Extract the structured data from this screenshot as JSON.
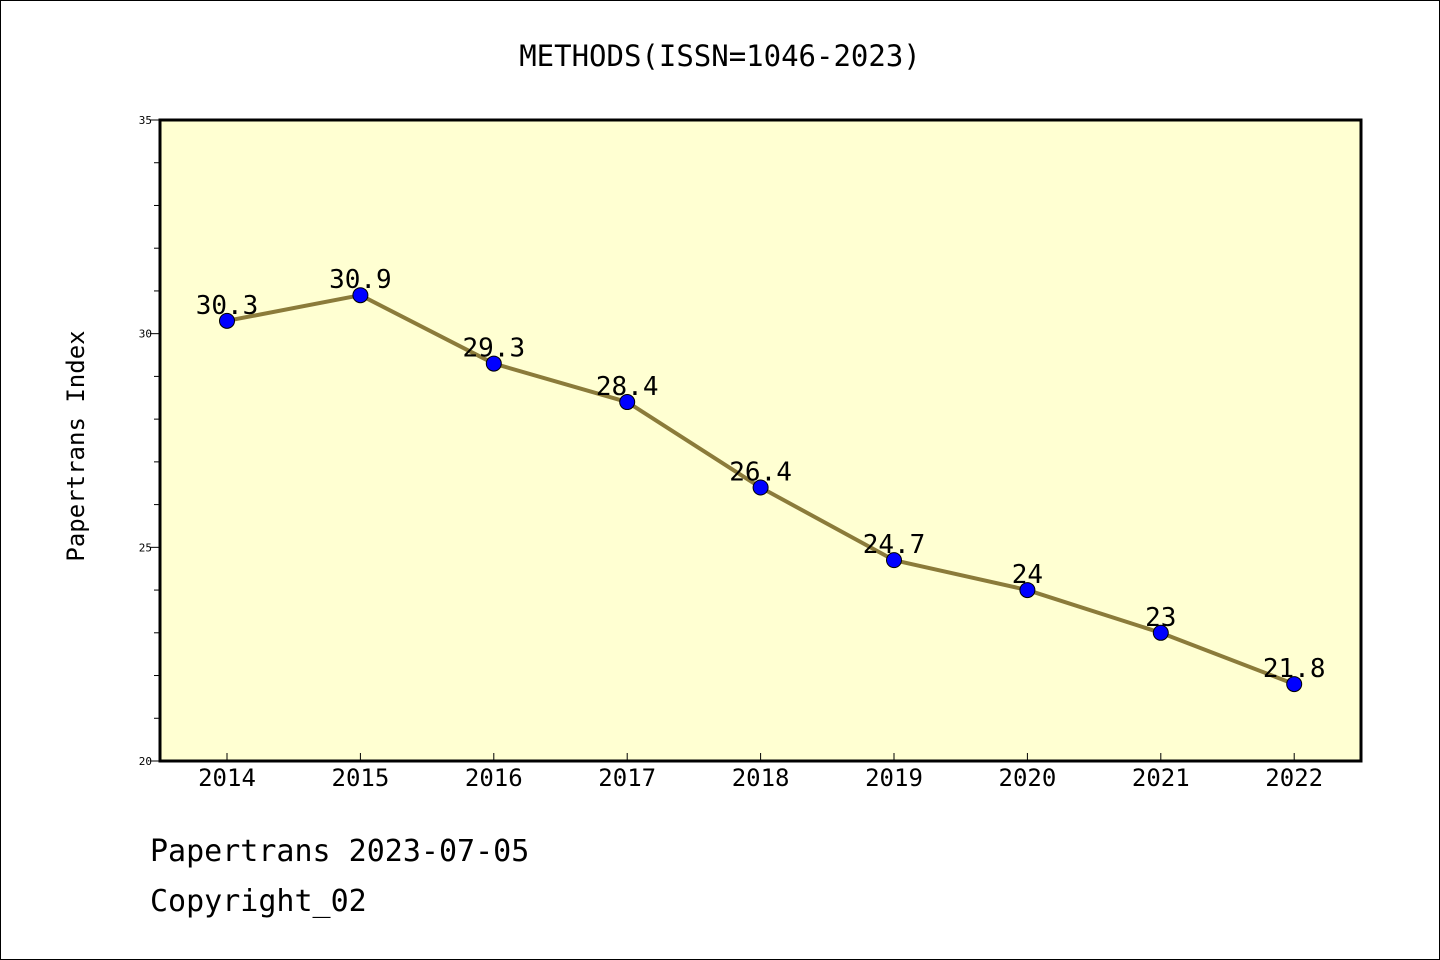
{
  "chart_data": {
    "type": "line",
    "title": "METHODS(ISSN=1046-2023)",
    "xlabel": "",
    "ylabel": "Papertrans Index",
    "categories": [
      "2014",
      "2015",
      "2016",
      "2017",
      "2018",
      "2019",
      "2020",
      "2021",
      "2022"
    ],
    "values": [
      30.3,
      30.9,
      29.3,
      28.4,
      26.4,
      24.7,
      24,
      23,
      21.8
    ],
    "data_labels": [
      "30.3",
      "30.9",
      "29.3",
      "28.4",
      "26.4",
      "24.7",
      "24",
      "23",
      "21.8"
    ],
    "ylim": [
      20,
      35
    ],
    "y_ticks": [
      20,
      25,
      30,
      35
    ],
    "y_minor_step": 1,
    "grid": false,
    "legend": "none",
    "plot_background": "#ffffd2",
    "line_color": "#8b7b3a",
    "marker_color": "#0000ff"
  },
  "footer": {
    "line1": "Papertrans 2023-07-05",
    "line2": "Copyright_02"
  }
}
